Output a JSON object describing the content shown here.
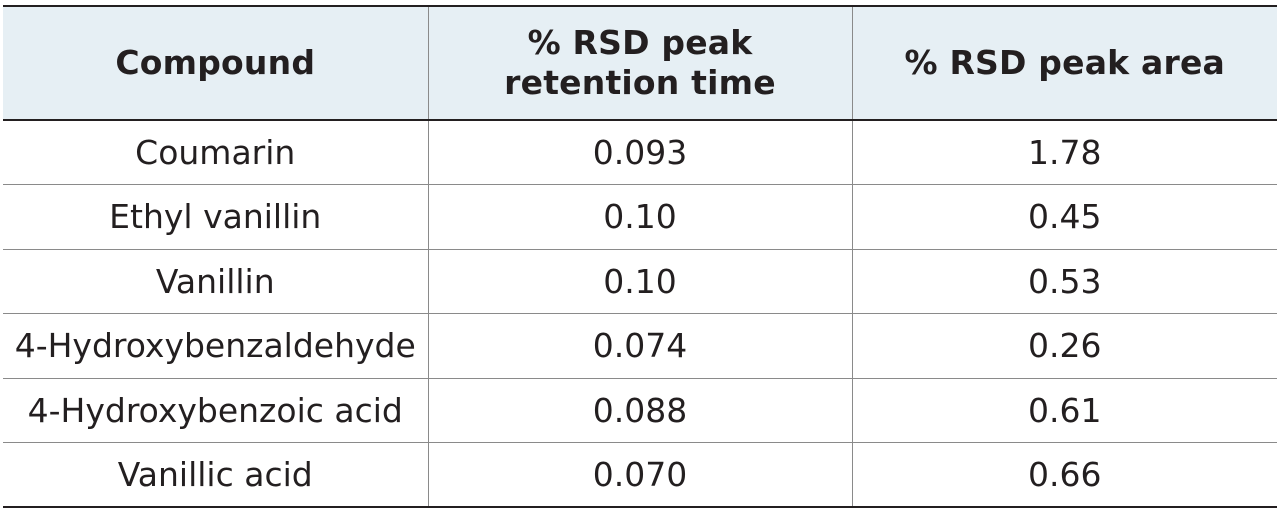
{
  "table": {
    "headers": [
      "Compound",
      "% RSD peak retention time",
      "% RSD peak area"
    ],
    "rows": [
      [
        "Coumarin",
        "0.093",
        "1.78"
      ],
      [
        "Ethyl vanillin",
        "0.10",
        "0.45"
      ],
      [
        "Vanillin",
        "0.10",
        "0.53"
      ],
      [
        "4-Hydroxybenzaldehyde",
        "0.074",
        "0.26"
      ],
      [
        "4-Hydroxybenzoic acid",
        "0.088",
        "0.61"
      ],
      [
        "Vanillic acid",
        "0.070",
        "0.66"
      ]
    ],
    "colors": {
      "header_background": "#e6eff4",
      "text": "#231f20",
      "rule": "#231f20",
      "grid": "#8a8a8a"
    }
  }
}
